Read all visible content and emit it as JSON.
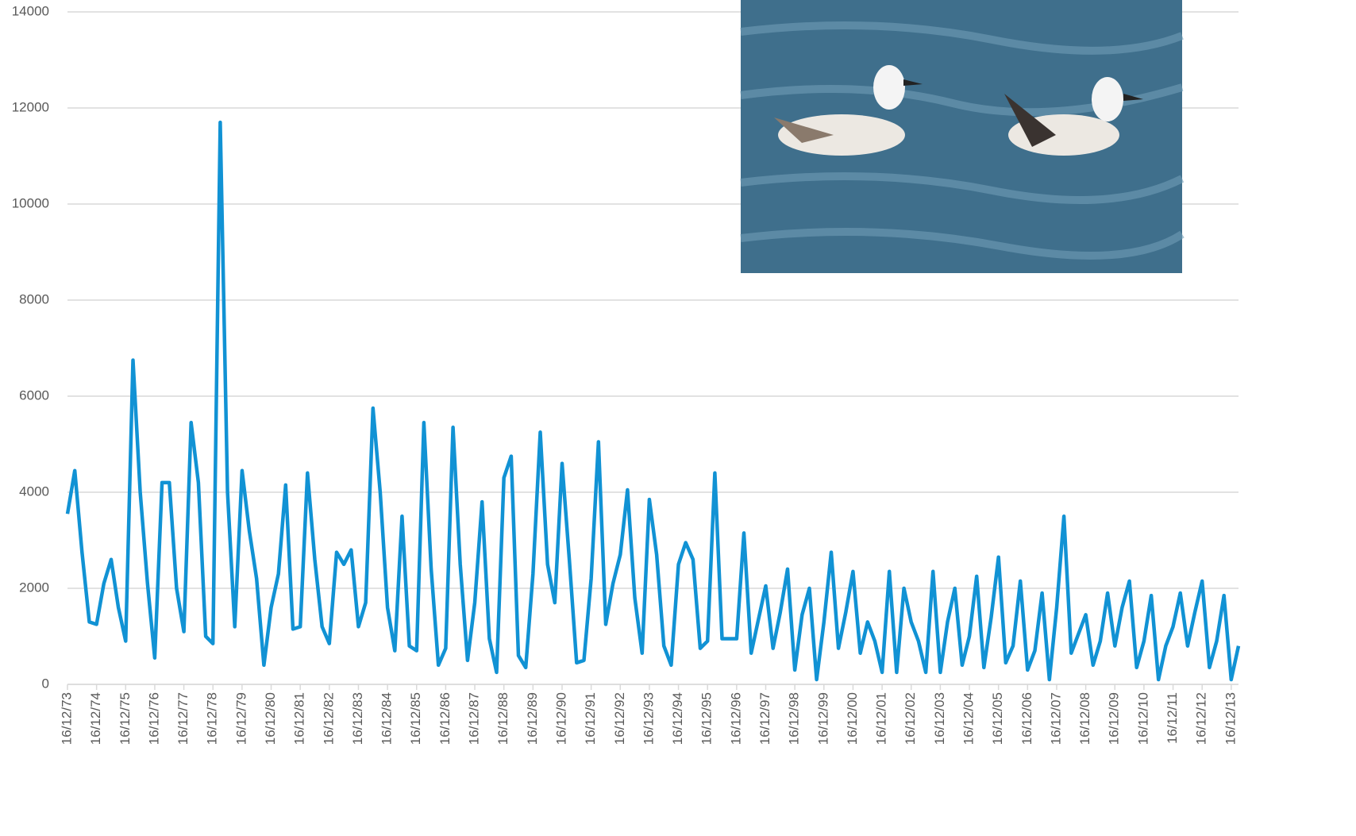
{
  "chart_data": {
    "type": "line",
    "categories": [
      "16/12/73",
      null,
      null,
      null,
      "16/12/74",
      null,
      null,
      null,
      "16/12/75",
      null,
      null,
      null,
      "16/12/76",
      null,
      null,
      null,
      "16/12/77",
      null,
      null,
      null,
      "16/12/78",
      null,
      null,
      null,
      "16/12/79",
      null,
      null,
      null,
      "16/12/80",
      null,
      null,
      null,
      "16/12/81",
      null,
      null,
      null,
      "16/12/82",
      null,
      null,
      null,
      "16/12/83",
      null,
      null,
      null,
      "16/12/84",
      null,
      null,
      null,
      "16/12/85",
      null,
      null,
      null,
      "16/12/86",
      null,
      null,
      null,
      "16/12/87",
      null,
      null,
      null,
      "16/12/88",
      null,
      null,
      null,
      "16/12/89",
      null,
      null,
      null,
      "16/12/90",
      null,
      null,
      null,
      "16/12/91",
      null,
      null,
      null,
      "16/12/92",
      null,
      null,
      null,
      "16/12/93",
      null,
      null,
      null,
      "16/12/94",
      null,
      null,
      null,
      "16/12/95",
      null,
      null,
      null,
      "16/12/96",
      null,
      null,
      null,
      "16/12/97",
      null,
      null,
      null,
      "16/12/98",
      null,
      null,
      null,
      "16/12/99",
      null,
      null,
      null,
      "16/12/00",
      null,
      null,
      null,
      "16/12/01",
      null,
      null,
      null,
      "16/12/02",
      null,
      null,
      null,
      "16/12/03",
      null,
      null,
      null,
      "16/12/04",
      null,
      null,
      null,
      "16/12/05",
      null,
      null,
      null,
      "16/12/06",
      null,
      null,
      null,
      "16/12/07",
      null,
      null,
      null,
      "16/12/08",
      null,
      null,
      null,
      "16/12/09",
      null,
      null,
      null,
      "16/12/10",
      null,
      null,
      null,
      "16/12/11",
      null,
      null,
      null,
      "16/12/12",
      null,
      null,
      null,
      "16/12/13",
      null
    ],
    "values": [
      3550,
      4450,
      2750,
      1300,
      1250,
      2100,
      2600,
      1600,
      900,
      6750,
      4000,
      2100,
      550,
      4200,
      4200,
      2000,
      1100,
      5450,
      4200,
      1000,
      850,
      11700,
      4000,
      1200,
      4450,
      3200,
      2200,
      400,
      1600,
      2300,
      4150,
      1150,
      1200,
      4400,
      2600,
      1200,
      850,
      2750,
      2500,
      2800,
      1200,
      1700,
      5750,
      4000,
      1600,
      700,
      3500,
      800,
      700,
      5450,
      2400,
      400,
      750,
      5350,
      2500,
      500,
      1700,
      3800,
      950,
      250,
      4300,
      4750,
      600,
      350,
      2300,
      5250,
      2500,
      1700,
      4600,
      2600,
      450,
      500,
      2200,
      5050,
      1250,
      2100,
      2700,
      4050,
      1800,
      650,
      3850,
      2700,
      800,
      400,
      2500,
      2950,
      2600,
      750,
      900,
      4400,
      950,
      950,
      950,
      3150,
      650,
      1350,
      2050,
      750,
      1500,
      2400,
      300,
      1450,
      2000,
      100,
      1300,
      2750,
      750,
      1500,
      2350,
      650,
      1300,
      900,
      250,
      2350,
      250,
      2000,
      1300,
      900,
      250,
      2350,
      250,
      1300,
      2000,
      400,
      1000,
      2250,
      350,
      1400,
      2650,
      450,
      800,
      2150,
      300,
      700,
      1900,
      100,
      1600,
      3500,
      650,
      1050,
      1450,
      400,
      900,
      1900,
      800,
      1600,
      2150,
      350,
      900,
      1850,
      100,
      800,
      1200,
      1900,
      800,
      1500,
      2150,
      350,
      900,
      1850,
      100,
      800
    ],
    "color": "#1192d4",
    "ylim": [
      0,
      14000
    ],
    "yticks": [
      0,
      2000,
      4000,
      6000,
      8000,
      10000,
      12000,
      14000
    ],
    "grid": true
  }
}
